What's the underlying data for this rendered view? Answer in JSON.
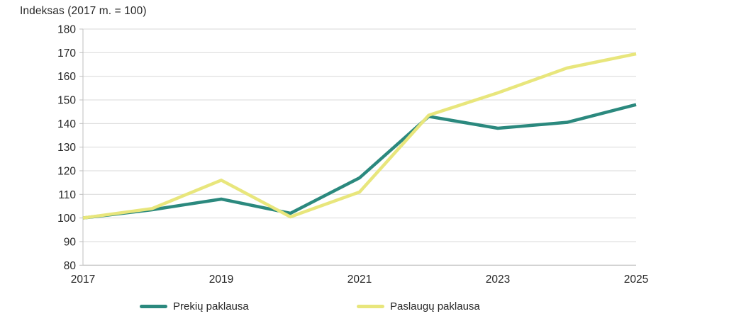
{
  "chart_data": {
    "type": "line",
    "title": "Indeksas (2017 m. = 100)",
    "x": [
      2017,
      2018,
      2019,
      2020,
      2021,
      2022,
      2023,
      2024,
      2025
    ],
    "xticks": [
      2017,
      2019,
      2021,
      2023,
      2025
    ],
    "ylim": [
      80,
      180
    ],
    "ytick_step": 10,
    "grid": "horizontal",
    "legend_position": "bottom",
    "series": [
      {
        "name": "Prekių paklausa",
        "color": "#2B897E",
        "values": [
          100,
          103.5,
          108,
          102,
          117,
          143,
          138,
          140.5,
          148
        ]
      },
      {
        "name": "Paslaugų paklausa",
        "color": "#E8E67C",
        "values": [
          100,
          104,
          116,
          100.5,
          111,
          143.5,
          153,
          163.5,
          169.5
        ]
      }
    ],
    "colors": {
      "grid": "#D9D9D9",
      "axis": "#BFBFBF",
      "text": "#262626"
    }
  }
}
